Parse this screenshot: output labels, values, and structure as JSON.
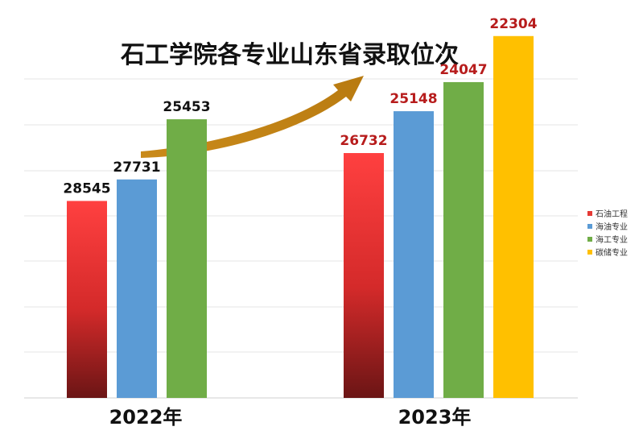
{
  "chart_data": {
    "type": "bar",
    "title": "石工学院各专业山东省录取位次",
    "xlabel": "",
    "ylabel": "",
    "categories": [
      "2022年",
      "2023年"
    ],
    "series": [
      {
        "name": "石油工程",
        "values": [
          28545,
          26732
        ],
        "color": "#E53935"
      },
      {
        "name": "海油专业",
        "values": [
          27731,
          25148
        ],
        "color": "#5B9BD5"
      },
      {
        "name": "海工专业",
        "values": [
          25453,
          24047
        ],
        "color": "#70AD47"
      },
      {
        "name": "碳储专业",
        "values": [
          null,
          22304
        ],
        "color": "#FFC000"
      }
    ],
    "value_label_colors": [
      "#111111",
      "#B71C1C"
    ],
    "y_axis": "reversed rank position (lower rank drawn as taller bar)",
    "ylim": [
      36000,
      20000
    ],
    "grid": true,
    "legend": "right",
    "annotation": "upward arrow"
  }
}
